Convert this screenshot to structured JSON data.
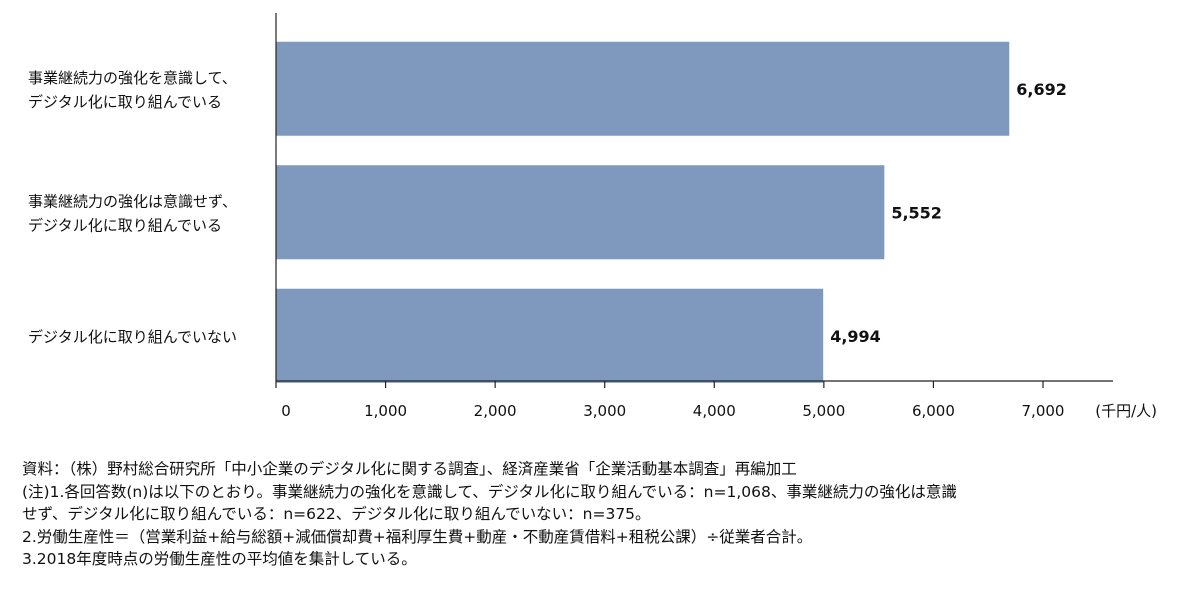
{
  "chart_data": {
    "type": "bar",
    "orientation": "horizontal",
    "categories": [
      [
        "事業継続力の強化を意識して、",
        "デジタル化に取り組んでいる"
      ],
      [
        "事業継続力の強化は意識せず、",
        "デジタル化に取り組んでいる"
      ],
      [
        "デジタル化に取り組んでいない"
      ]
    ],
    "values": [
      6692,
      5552,
      4994
    ],
    "value_labels": [
      "6,692",
      "5,552",
      "4,994"
    ],
    "xlim": [
      0,
      7000
    ],
    "xticks": [
      0,
      1000,
      2000,
      3000,
      4000,
      5000,
      6000,
      7000
    ],
    "xtick_labels": [
      "0",
      "1,000",
      "2,000",
      "3,000",
      "4,000",
      "5,000",
      "6,000",
      "7,000"
    ],
    "unit": "(千円/人)",
    "grid": false,
    "bar_color": "#7f98bd"
  },
  "notes": [
    "資料：（株）野村総合研究所「中小企業のデジタル化に関する調査」、経済産業省「企業活動基本調査」再編加工",
    "(注)1.各回答数(n)は以下のとおり。事業継続力の強化を意識して、デジタル化に取り組んでいる：n=1,068、事業継続力の強化は意識",
    "せず、デジタル化に取り組んでいる：n=622、デジタル化に取り組んでいない：n=375。",
    "2.労働生産性＝（営業利益+給与総額+減価償却費+福利厚生費+動産・不動産賃借料+租税公課）÷従業者合計。",
    "3.2018年度時点の労働生産性の平均値を集計している。"
  ]
}
